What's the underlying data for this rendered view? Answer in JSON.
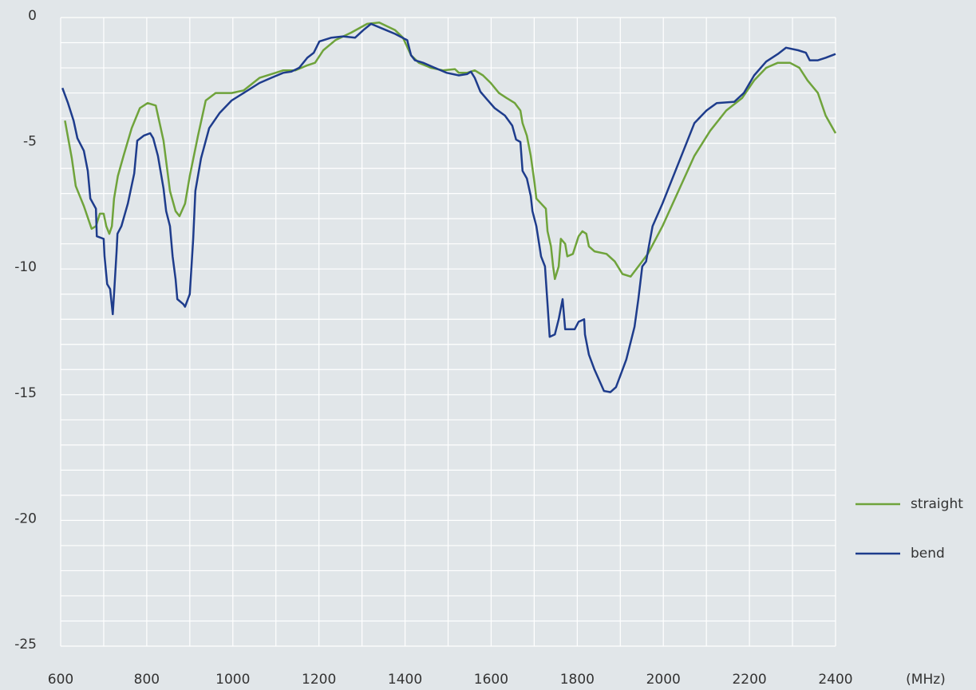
{
  "chart_data": {
    "type": "line",
    "xlabel": "(MHz)",
    "xlim": [
      600,
      2400
    ],
    "ylim": [
      -25,
      0
    ],
    "xticks": [
      600,
      800,
      1000,
      1200,
      1400,
      1600,
      1800,
      2000,
      2200,
      2400
    ],
    "yticks": [
      0,
      -5,
      -10,
      -15,
      -20,
      -25
    ],
    "x_minor_ticks": [
      700,
      900,
      1100,
      1300,
      1500,
      1700,
      1900,
      2100,
      2300
    ],
    "y_minor_ticks": [
      -1,
      -2,
      -3,
      -4,
      -6,
      -7,
      -8,
      -9,
      -11,
      -12,
      -13,
      -14,
      -16,
      -17,
      -18,
      -19,
      -21,
      -22,
      -23,
      -24
    ],
    "grid": true,
    "legend": "right",
    "series": [
      {
        "name": "straight",
        "color": "#6fa33b",
        "x": [
          610,
          626,
          635,
          654,
          672,
          682,
          691,
          700,
          706,
          713,
          719,
          724,
          733,
          746,
          765,
          784,
          802,
          821,
          839,
          854,
          867,
          876,
          889,
          900,
          919,
          937,
          960,
          997,
          1025,
          1062,
          1099,
          1117,
          1145,
          1173,
          1191,
          1210,
          1238,
          1275,
          1312,
          1340,
          1377,
          1395,
          1414,
          1432,
          1460,
          1488,
          1516,
          1525,
          1544,
          1562,
          1581,
          1599,
          1618,
          1636,
          1655,
          1668,
          1673,
          1683,
          1692,
          1701,
          1705,
          1716,
          1727,
          1731,
          1739,
          1744,
          1748,
          1757,
          1762,
          1772,
          1777,
          1790,
          1803,
          1812,
          1821,
          1827,
          1840,
          1868,
          1887,
          1905,
          1924,
          1942,
          1964,
          1998,
          2035,
          2072,
          2109,
          2146,
          2183,
          2211,
          2239,
          2266,
          2294,
          2316,
          2335,
          2359,
          2377,
          2400
        ],
        "values": [
          -4.1,
          -5.6,
          -6.7,
          -7.5,
          -8.4,
          -8.3,
          -7.8,
          -7.8,
          -8.3,
          -8.6,
          -8.3,
          -7.2,
          -6.3,
          -5.5,
          -4.4,
          -3.6,
          -3.4,
          -3.5,
          -4.9,
          -6.9,
          -7.7,
          -7.9,
          -7.4,
          -6.3,
          -4.7,
          -3.3,
          -3.0,
          -3.0,
          -2.9,
          -2.4,
          -2.2,
          -2.1,
          -2.1,
          -1.9,
          -1.8,
          -1.3,
          -0.9,
          -0.6,
          -0.25,
          -0.2,
          -0.5,
          -0.8,
          -1.5,
          -1.8,
          -2.0,
          -2.1,
          -2.05,
          -2.2,
          -2.2,
          -2.1,
          -2.3,
          -2.6,
          -3.0,
          -3.2,
          -3.4,
          -3.7,
          -4.2,
          -4.7,
          -5.5,
          -6.6,
          -7.2,
          -7.4,
          -7.6,
          -8.5,
          -9.1,
          -9.9,
          -10.4,
          -9.9,
          -8.8,
          -9.0,
          -9.5,
          -9.4,
          -8.7,
          -8.5,
          -8.6,
          -9.1,
          -9.3,
          -9.4,
          -9.7,
          -10.2,
          -10.3,
          -9.9,
          -9.4,
          -8.3,
          -6.9,
          -5.5,
          -4.5,
          -3.7,
          -3.2,
          -2.5,
          -2.0,
          -1.8,
          -1.8,
          -2.0,
          -2.5,
          -3.0,
          -3.9,
          -4.6
        ]
      },
      {
        "name": "bend",
        "color": "#1e3c8c",
        "x": [
          604,
          617,
          630,
          639,
          654,
          663,
          669,
          682,
          684,
          700,
          702,
          708,
          715,
          721,
          724,
          730,
          732,
          741,
          756,
          771,
          778,
          793,
          808,
          815,
          826,
          839,
          845,
          854,
          860,
          867,
          871,
          885,
          889,
          900,
          908,
          913,
          926,
          945,
          969,
          997,
          1025,
          1062,
          1089,
          1117,
          1136,
          1154,
          1173,
          1188,
          1201,
          1229,
          1256,
          1284,
          1303,
          1321,
          1349,
          1377,
          1405,
          1414,
          1423,
          1442,
          1469,
          1497,
          1525,
          1544,
          1553,
          1562,
          1575,
          1590,
          1608,
          1632,
          1649,
          1658,
          1668,
          1673,
          1683,
          1692,
          1696,
          1705,
          1716,
          1725,
          1731,
          1736,
          1748,
          1757,
          1766,
          1772,
          1794,
          1803,
          1816,
          1818,
          1827,
          1840,
          1853,
          1862,
          1877,
          1890,
          1901,
          1914,
          1933,
          1942,
          1951,
          1960,
          1975,
          1998,
          2035,
          2072,
          2100,
          2124,
          2165,
          2187,
          2211,
          2239,
          2266,
          2285,
          2313,
          2331,
          2340,
          2359,
          2377,
          2400
        ],
        "values": [
          -2.8,
          -3.4,
          -4.1,
          -4.8,
          -5.3,
          -6.1,
          -7.2,
          -7.6,
          -8.7,
          -8.8,
          -9.5,
          -10.6,
          -10.8,
          -11.8,
          -11.0,
          -9.3,
          -8.6,
          -8.3,
          -7.4,
          -6.2,
          -4.9,
          -4.7,
          -4.6,
          -4.8,
          -5.5,
          -6.8,
          -7.7,
          -8.3,
          -9.5,
          -10.4,
          -11.2,
          -11.4,
          -11.5,
          -11.0,
          -8.8,
          -6.9,
          -5.6,
          -4.4,
          -3.8,
          -3.3,
          -3.0,
          -2.6,
          -2.4,
          -2.2,
          -2.15,
          -2.0,
          -1.6,
          -1.4,
          -0.95,
          -0.8,
          -0.75,
          -0.8,
          -0.5,
          -0.25,
          -0.45,
          -0.65,
          -0.9,
          -1.5,
          -1.7,
          -1.8,
          -2.0,
          -2.2,
          -2.3,
          -2.25,
          -2.15,
          -2.4,
          -2.95,
          -3.25,
          -3.6,
          -3.9,
          -4.3,
          -4.85,
          -4.95,
          -6.1,
          -6.4,
          -7.1,
          -7.7,
          -8.3,
          -9.5,
          -9.9,
          -11.4,
          -12.7,
          -12.6,
          -12.0,
          -11.2,
          -12.4,
          -12.4,
          -12.1,
          -12.0,
          -12.6,
          -13.4,
          -14.0,
          -14.5,
          -14.85,
          -14.9,
          -14.7,
          -14.2,
          -13.6,
          -12.3,
          -11.2,
          -9.9,
          -9.7,
          -8.3,
          -7.4,
          -5.8,
          -4.2,
          -3.7,
          -3.4,
          -3.35,
          -3.0,
          -2.3,
          -1.75,
          -1.45,
          -1.2,
          -1.3,
          -1.4,
          -1.7,
          -1.7,
          -1.6,
          -1.45
        ]
      }
    ]
  }
}
